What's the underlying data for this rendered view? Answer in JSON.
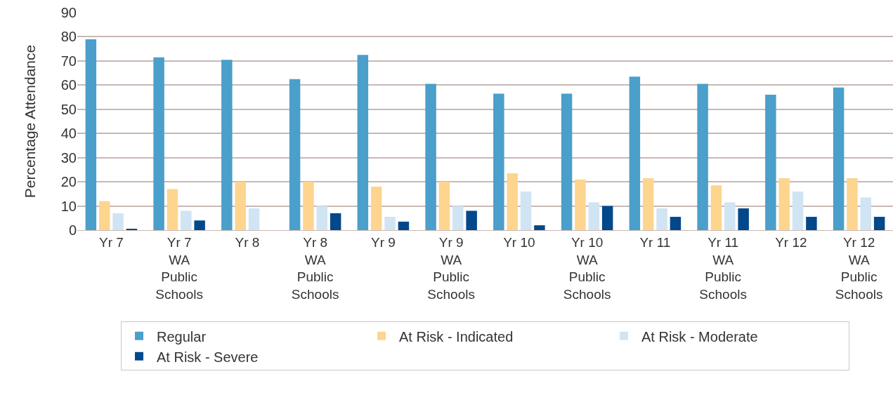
{
  "chart_data": {
    "type": "bar",
    "ylabel": "Percentage Attendance",
    "categories": [
      "Yr 7",
      "Yr 7\nWA\nPublic\nSchools",
      "Yr 8",
      "Yr 8\nWA\nPublic\nSchools",
      "Yr 9",
      "Yr 9\nWA\nPublic\nSchools",
      "Yr 10",
      "Yr 10\nWA\nPublic\nSchools",
      "Yr 11",
      "Yr 11\nWA\nPublic\nSchools",
      "Yr 12",
      "Yr 12\nWA\nPublic\nSchools"
    ],
    "series": [
      {
        "name": "Regular",
        "color": "#4a9fcb",
        "values": [
          79,
          71.5,
          70.5,
          62.5,
          72.5,
          60.5,
          56.5,
          56.5,
          63.5,
          60.5,
          56,
          59
        ]
      },
      {
        "name": "At Risk - Indicated",
        "color": "#fdd58f",
        "values": [
          12,
          17,
          20,
          20,
          18,
          20,
          23.5,
          21,
          21.5,
          18.5,
          21.5,
          21.5
        ]
      },
      {
        "name": "At Risk - Moderate",
        "color": "#d1e4f3",
        "values": [
          7,
          8,
          9,
          10,
          5.5,
          10,
          16,
          11.5,
          9,
          11.5,
          16,
          13.5
        ]
      },
      {
        "name": "At Risk - Severe",
        "color": "#02488b",
        "values": [
          0.5,
          4,
          null,
          7,
          3.5,
          8,
          2,
          10,
          5.5,
          9,
          5.5,
          5.5
        ]
      }
    ],
    "ylim": [
      0,
      90
    ],
    "yticks": [
      0,
      10,
      20,
      30,
      40,
      50,
      60,
      70,
      80,
      90
    ],
    "grid": "y",
    "legend": "bottom"
  }
}
